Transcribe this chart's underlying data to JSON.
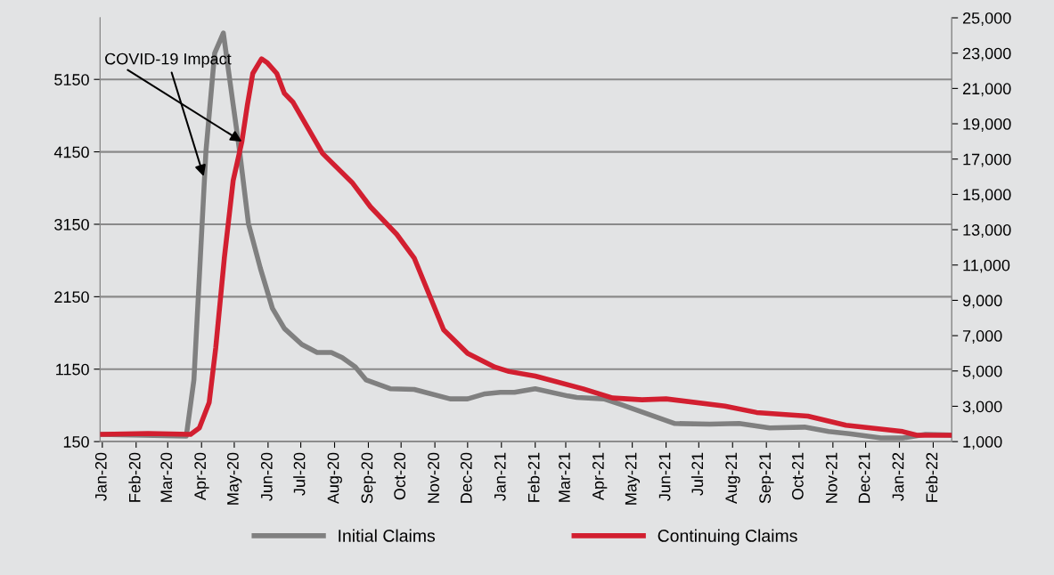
{
  "chart_data": {
    "type": "line",
    "x": [
      "2020-01-01",
      "2020-03-18",
      "2020-03-25",
      "2020-04-05",
      "2020-04-13",
      "2020-04-21",
      "2020-04-30",
      "2020-05-06",
      "2020-05-14",
      "2020-05-25",
      "2020-06-05",
      "2020-06-16",
      "2020-07-02",
      "2020-07-16",
      "2020-07-29",
      "2020-08-08",
      "2020-08-20",
      "2020-08-30",
      "2020-09-21",
      "2020-10-13",
      "2020-11-15",
      "2020-12-01",
      "2020-12-17",
      "2020-12-31",
      "2021-01-13",
      "2021-02-01",
      "2021-03-03",
      "2021-03-11",
      "2021-04-05",
      "2021-04-21",
      "2021-05-10",
      "2021-06-09",
      "2021-07-11",
      "2021-08-07",
      "2021-09-04",
      "2021-10-06",
      "2021-10-28",
      "2021-11-16",
      "2021-12-15",
      "2022-01-04",
      "2022-01-25",
      "2022-02-16"
    ],
    "series": [
      {
        "name": "Initial Claims",
        "color": "#808080",
        "values": [
          250,
          225,
          1000,
          4150,
          5510,
          5790,
          4800,
          4150,
          3160,
          2540,
          1990,
          1710,
          1490,
          1380,
          1380,
          1310,
          1180,
          1000,
          880,
          870,
          740,
          740,
          810,
          830,
          830,
          880,
          780,
          760,
          740,
          660,
          560,
          400,
          390,
          400,
          340,
          350,
          290,
          260,
          200,
          200,
          250,
          240
        ]
      },
      {
        "name": "Continuing Claims",
        "color": "#d21f30",
        "axis": "y2",
        "x": [
          "2020-01-01",
          "2020-02-12",
          "2020-03-22",
          "2020-03-30",
          "2020-04-08",
          "2020-04-14",
          "2020-04-22",
          "2020-04-30",
          "2020-05-08",
          "2020-05-13",
          "2020-05-18",
          "2020-05-26",
          "2020-05-31",
          "2020-06-09",
          "2020-06-16",
          "2020-06-24",
          "2020-07-21",
          "2020-08-17",
          "2020-09-03",
          "2020-09-27",
          "2020-10-13",
          "2020-11-09",
          "2020-12-01",
          "2020-12-26",
          "2021-01-08",
          "2021-02-01",
          "2021-03-17",
          "2021-04-13",
          "2021-05-10",
          "2021-06-01",
          "2021-07-25",
          "2021-08-23",
          "2021-10-09",
          "2021-11-13",
          "2022-01-04",
          "2022-01-17",
          "2022-02-16"
        ],
        "values": [
          1410,
          1460,
          1410,
          1770,
          3210,
          6300,
          11450,
          15780,
          17990,
          20050,
          21850,
          22680,
          22470,
          21850,
          20720,
          20210,
          17320,
          15680,
          14290,
          12740,
          11400,
          7330,
          6000,
          5220,
          4970,
          4710,
          3990,
          3470,
          3370,
          3420,
          3010,
          2650,
          2440,
          1930,
          1570,
          1360,
          1360
        ]
      }
    ],
    "annotations": [
      {
        "text": "COVID-19 Impact",
        "x": "2020-04-03",
        "y": 3810
      }
    ],
    "xlim": [
      "2019-12-30",
      "2022-02-18"
    ],
    "xticks": [
      {
        "value": "2020-01-01",
        "label": "Jan-20"
      },
      {
        "value": "2020-02-01",
        "label": "Feb-20"
      },
      {
        "value": "2020-03-01",
        "label": "Mar-20"
      },
      {
        "value": "2020-04-01",
        "label": "Apr-20"
      },
      {
        "value": "2020-05-01",
        "label": "May-20"
      },
      {
        "value": "2020-06-01",
        "label": "Jun-20"
      },
      {
        "value": "2020-07-01",
        "label": "Jul-20"
      },
      {
        "value": "2020-08-01",
        "label": "Aug-20"
      },
      {
        "value": "2020-09-01",
        "label": "Sep-20"
      },
      {
        "value": "2020-10-01",
        "label": "Oct-20"
      },
      {
        "value": "2020-11-01",
        "label": "Nov-20"
      },
      {
        "value": "2020-12-01",
        "label": "Dec-20"
      },
      {
        "value": "2021-01-01",
        "label": "Jan-21"
      },
      {
        "value": "2021-02-01",
        "label": "Feb-21"
      },
      {
        "value": "2021-03-01",
        "label": "Mar-21"
      },
      {
        "value": "2021-04-01",
        "label": "Apr-21"
      },
      {
        "value": "2021-05-01",
        "label": "May-21"
      },
      {
        "value": "2021-06-01",
        "label": "Jun-21"
      },
      {
        "value": "2021-07-01",
        "label": "Jul-21"
      },
      {
        "value": "2021-08-01",
        "label": "Aug-21"
      },
      {
        "value": "2021-09-01",
        "label": "Sep-21"
      },
      {
        "value": "2021-10-01",
        "label": "Oct-21"
      },
      {
        "value": "2021-11-01",
        "label": "Nov-21"
      },
      {
        "value": "2021-12-01",
        "label": "Dec-21"
      },
      {
        "value": "2022-01-01",
        "label": "Jan-22"
      },
      {
        "value": "2022-02-01",
        "label": "Feb-22"
      }
    ],
    "ylim": [
      150,
      6000
    ],
    "yticks": [
      150,
      1150,
      2150,
      3150,
      4150,
      5150
    ],
    "y2lim": [
      1000,
      25000
    ],
    "y2ticks": [
      {
        "value": 1000,
        "label": "1,000"
      },
      {
        "value": 3000,
        "label": "3,000"
      },
      {
        "value": 5000,
        "label": "5,000"
      },
      {
        "value": 7000,
        "label": "7,000"
      },
      {
        "value": 9000,
        "label": "9,000"
      },
      {
        "value": 11000,
        "label": "11,000"
      },
      {
        "value": 13000,
        "label": "13,000"
      },
      {
        "value": 15000,
        "label": "15,000"
      },
      {
        "value": 17000,
        "label": "17,000"
      },
      {
        "value": 19000,
        "label": "19,000"
      },
      {
        "value": 21000,
        "label": "21,000"
      },
      {
        "value": 23000,
        "label": "23,000"
      },
      {
        "value": 25000,
        "label": "25,000"
      }
    ],
    "grid": "y",
    "legend": "bottom",
    "marker": "none",
    "line_style": "solid"
  }
}
